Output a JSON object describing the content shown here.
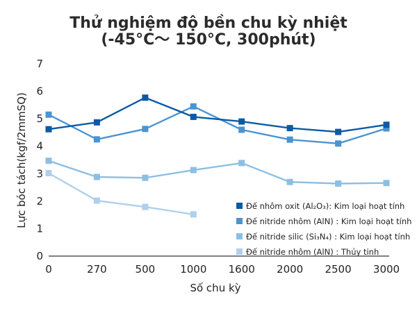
{
  "chart_data": {
    "type": "line",
    "title_lines": [
      "Thử nghiệm độ bền chu kỳ nhiệt",
      "(-45°C～ 150°C, 300phút)"
    ],
    "xlabel": "Số chu kỳ",
    "ylabel": "Lực bóc tách(kgf/2mmSQ)",
    "categories": [
      "0",
      "270",
      "500",
      "1000",
      "1600",
      "2000",
      "2500",
      "3000"
    ],
    "ylim": [
      0,
      7
    ],
    "yticks": [
      "0",
      "1",
      "2",
      "3",
      "4",
      "5",
      "6",
      "7"
    ],
    "grid": false,
    "legend_position": "bottom-right",
    "series": [
      {
        "name": "Đế nhôm oxit (Al₂O₃): Kim loại hoạt tính",
        "color": "#0b5aa6",
        "values": [
          4.62,
          4.87,
          5.77,
          5.07,
          4.9,
          4.66,
          4.52,
          4.78
        ]
      },
      {
        "name": "Đế nitride nhôm (AlN) : Kim loại hoạt tính",
        "color": "#4a94d0",
        "values": [
          5.15,
          4.25,
          4.63,
          5.45,
          4.6,
          4.24,
          4.1,
          4.65
        ]
      },
      {
        "name": "Đế nitride silic (Si₃N₄) : Kim loại hoạt tính",
        "color": "#8dbfe3",
        "values": [
          3.47,
          2.88,
          2.85,
          3.13,
          3.39,
          2.7,
          2.64,
          2.66
        ]
      },
      {
        "name": "Đế nitride nhôm (AlN) : Thủy tinh",
        "color": "#afcfec",
        "values": [
          3.02,
          2.02,
          1.79,
          1.52,
          null,
          null,
          null,
          null
        ]
      }
    ]
  }
}
